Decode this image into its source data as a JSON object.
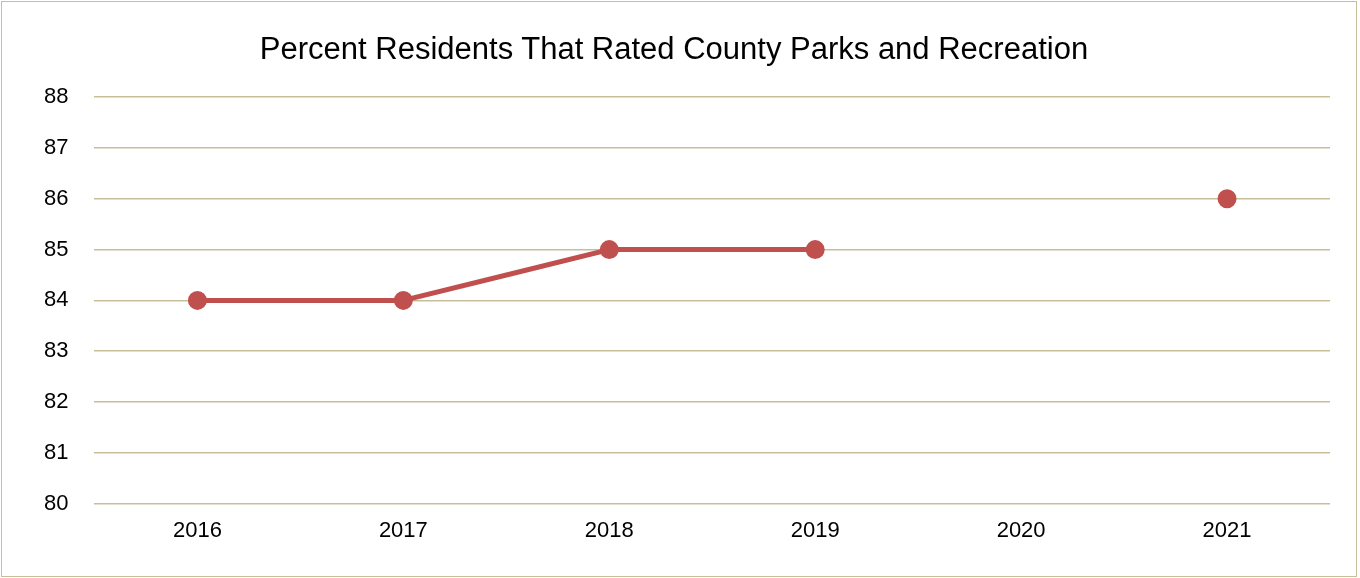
{
  "chart_data": {
    "type": "line",
    "title": "Percent Residents That Rated County Parks and Recreation",
    "categories": [
      "2016",
      "2017",
      "2018",
      "2019",
      "2020",
      "2021"
    ],
    "series": [
      {
        "color": "#c0504d",
        "values": [
          84,
          84,
          85,
          85,
          null,
          86
        ]
      }
    ],
    "ylim": [
      80,
      88
    ],
    "yticks": [
      80,
      81,
      82,
      83,
      84,
      85,
      86,
      87,
      88
    ],
    "grid": "y",
    "legend": false,
    "marker": "circle",
    "line_style": "solid"
  }
}
